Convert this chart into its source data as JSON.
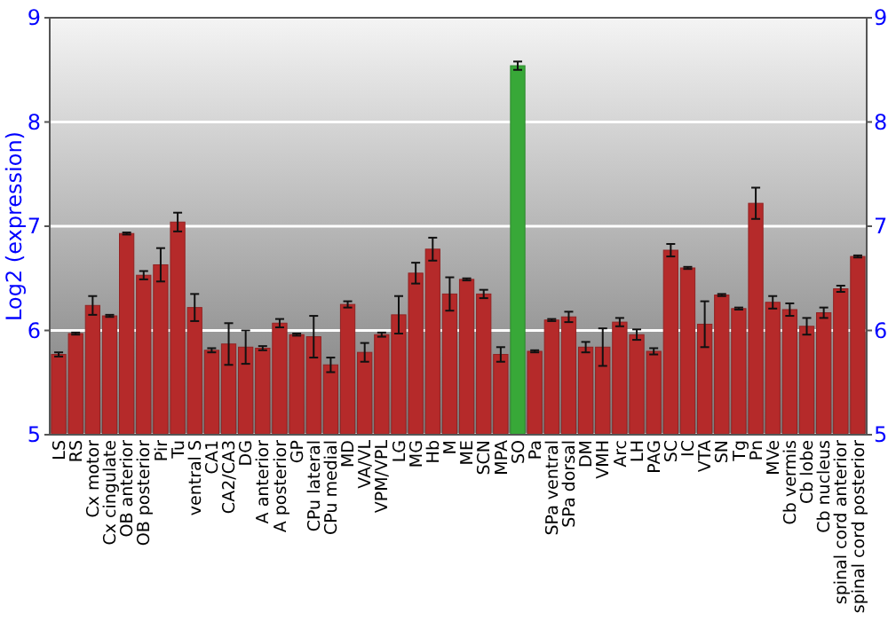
{
  "chart_data": {
    "type": "bar",
    "ylabel": "Log2 (expression)",
    "categories": [
      "LS",
      "RS",
      "Cx motor",
      "Cx cingulate",
      "OB anterior",
      "OB posterior",
      "Pir",
      "Tu",
      "ventral S",
      "CA1",
      "CA2/CA3",
      "DG",
      "A anterior",
      "A posterior",
      "GP",
      "CPu lateral",
      "CPu medial",
      "MD",
      "VA/VL",
      "VPM/VPL",
      "LG",
      "MG",
      "Hb",
      "M",
      "ME",
      "SCN",
      "MPA",
      "SO",
      "Pa",
      "SPa ventral",
      "SPa dorsal",
      "DM",
      "VMH",
      "Arc",
      "LH",
      "PAG",
      "SC",
      "IC",
      "VTA",
      "SN",
      "Tg",
      "Pn",
      "MVe",
      "Cb vermis",
      "Cb lobe",
      "Cb nucleus",
      "spinal cord anterior",
      "spinal cord posterior"
    ],
    "values": [
      5.77,
      5.97,
      6.24,
      6.14,
      6.93,
      6.53,
      6.63,
      7.04,
      6.22,
      5.81,
      5.87,
      5.84,
      5.83,
      6.07,
      5.96,
      5.94,
      5.67,
      6.25,
      5.79,
      5.96,
      6.15,
      6.55,
      6.78,
      6.35,
      6.49,
      6.35,
      5.77,
      8.54,
      5.8,
      6.1,
      6.13,
      5.84,
      5.84,
      6.08,
      5.96,
      5.8,
      6.77,
      6.6,
      6.06,
      6.34,
      6.21,
      7.22,
      6.27,
      6.2,
      6.04,
      6.17,
      6.4,
      6.71
    ],
    "errors": [
      0.02,
      0.01,
      0.09,
      0.01,
      0.01,
      0.04,
      0.16,
      0.09,
      0.13,
      0.02,
      0.2,
      0.16,
      0.02,
      0.04,
      0.01,
      0.2,
      0.07,
      0.03,
      0.09,
      0.02,
      0.18,
      0.1,
      0.11,
      0.16,
      0.01,
      0.04,
      0.07,
      0.04,
      0.01,
      0.01,
      0.05,
      0.05,
      0.18,
      0.04,
      0.05,
      0.03,
      0.06,
      0.01,
      0.22,
      0.01,
      0.01,
      0.15,
      0.06,
      0.06,
      0.08,
      0.05,
      0.03,
      0.01
    ],
    "colors": [
      "#b52a2a",
      "#b52a2a",
      "#b52a2a",
      "#b52a2a",
      "#b52a2a",
      "#b52a2a",
      "#b52a2a",
      "#b52a2a",
      "#b52a2a",
      "#b52a2a",
      "#b52a2a",
      "#b52a2a",
      "#b52a2a",
      "#b52a2a",
      "#b52a2a",
      "#b52a2a",
      "#b52a2a",
      "#b52a2a",
      "#b52a2a",
      "#b52a2a",
      "#b52a2a",
      "#b52a2a",
      "#b52a2a",
      "#b52a2a",
      "#b52a2a",
      "#b52a2a",
      "#b52a2a",
      "#38a838",
      "#b52a2a",
      "#b52a2a",
      "#b52a2a",
      "#b52a2a",
      "#b52a2a",
      "#b52a2a",
      "#b52a2a",
      "#b52a2a",
      "#b52a2a",
      "#b52a2a",
      "#b52a2a",
      "#b52a2a",
      "#b52a2a",
      "#b52a2a",
      "#b52a2a",
      "#b52a2a",
      "#b52a2a",
      "#b52a2a",
      "#b52a2a",
      "#b52a2a"
    ],
    "ylim": [
      5,
      9
    ],
    "yticks": [
      5,
      6,
      7,
      8,
      9
    ],
    "y2lim": [
      5,
      9
    ],
    "y2ticks": [
      5,
      6,
      7,
      8,
      9
    ],
    "grid": "y"
  }
}
